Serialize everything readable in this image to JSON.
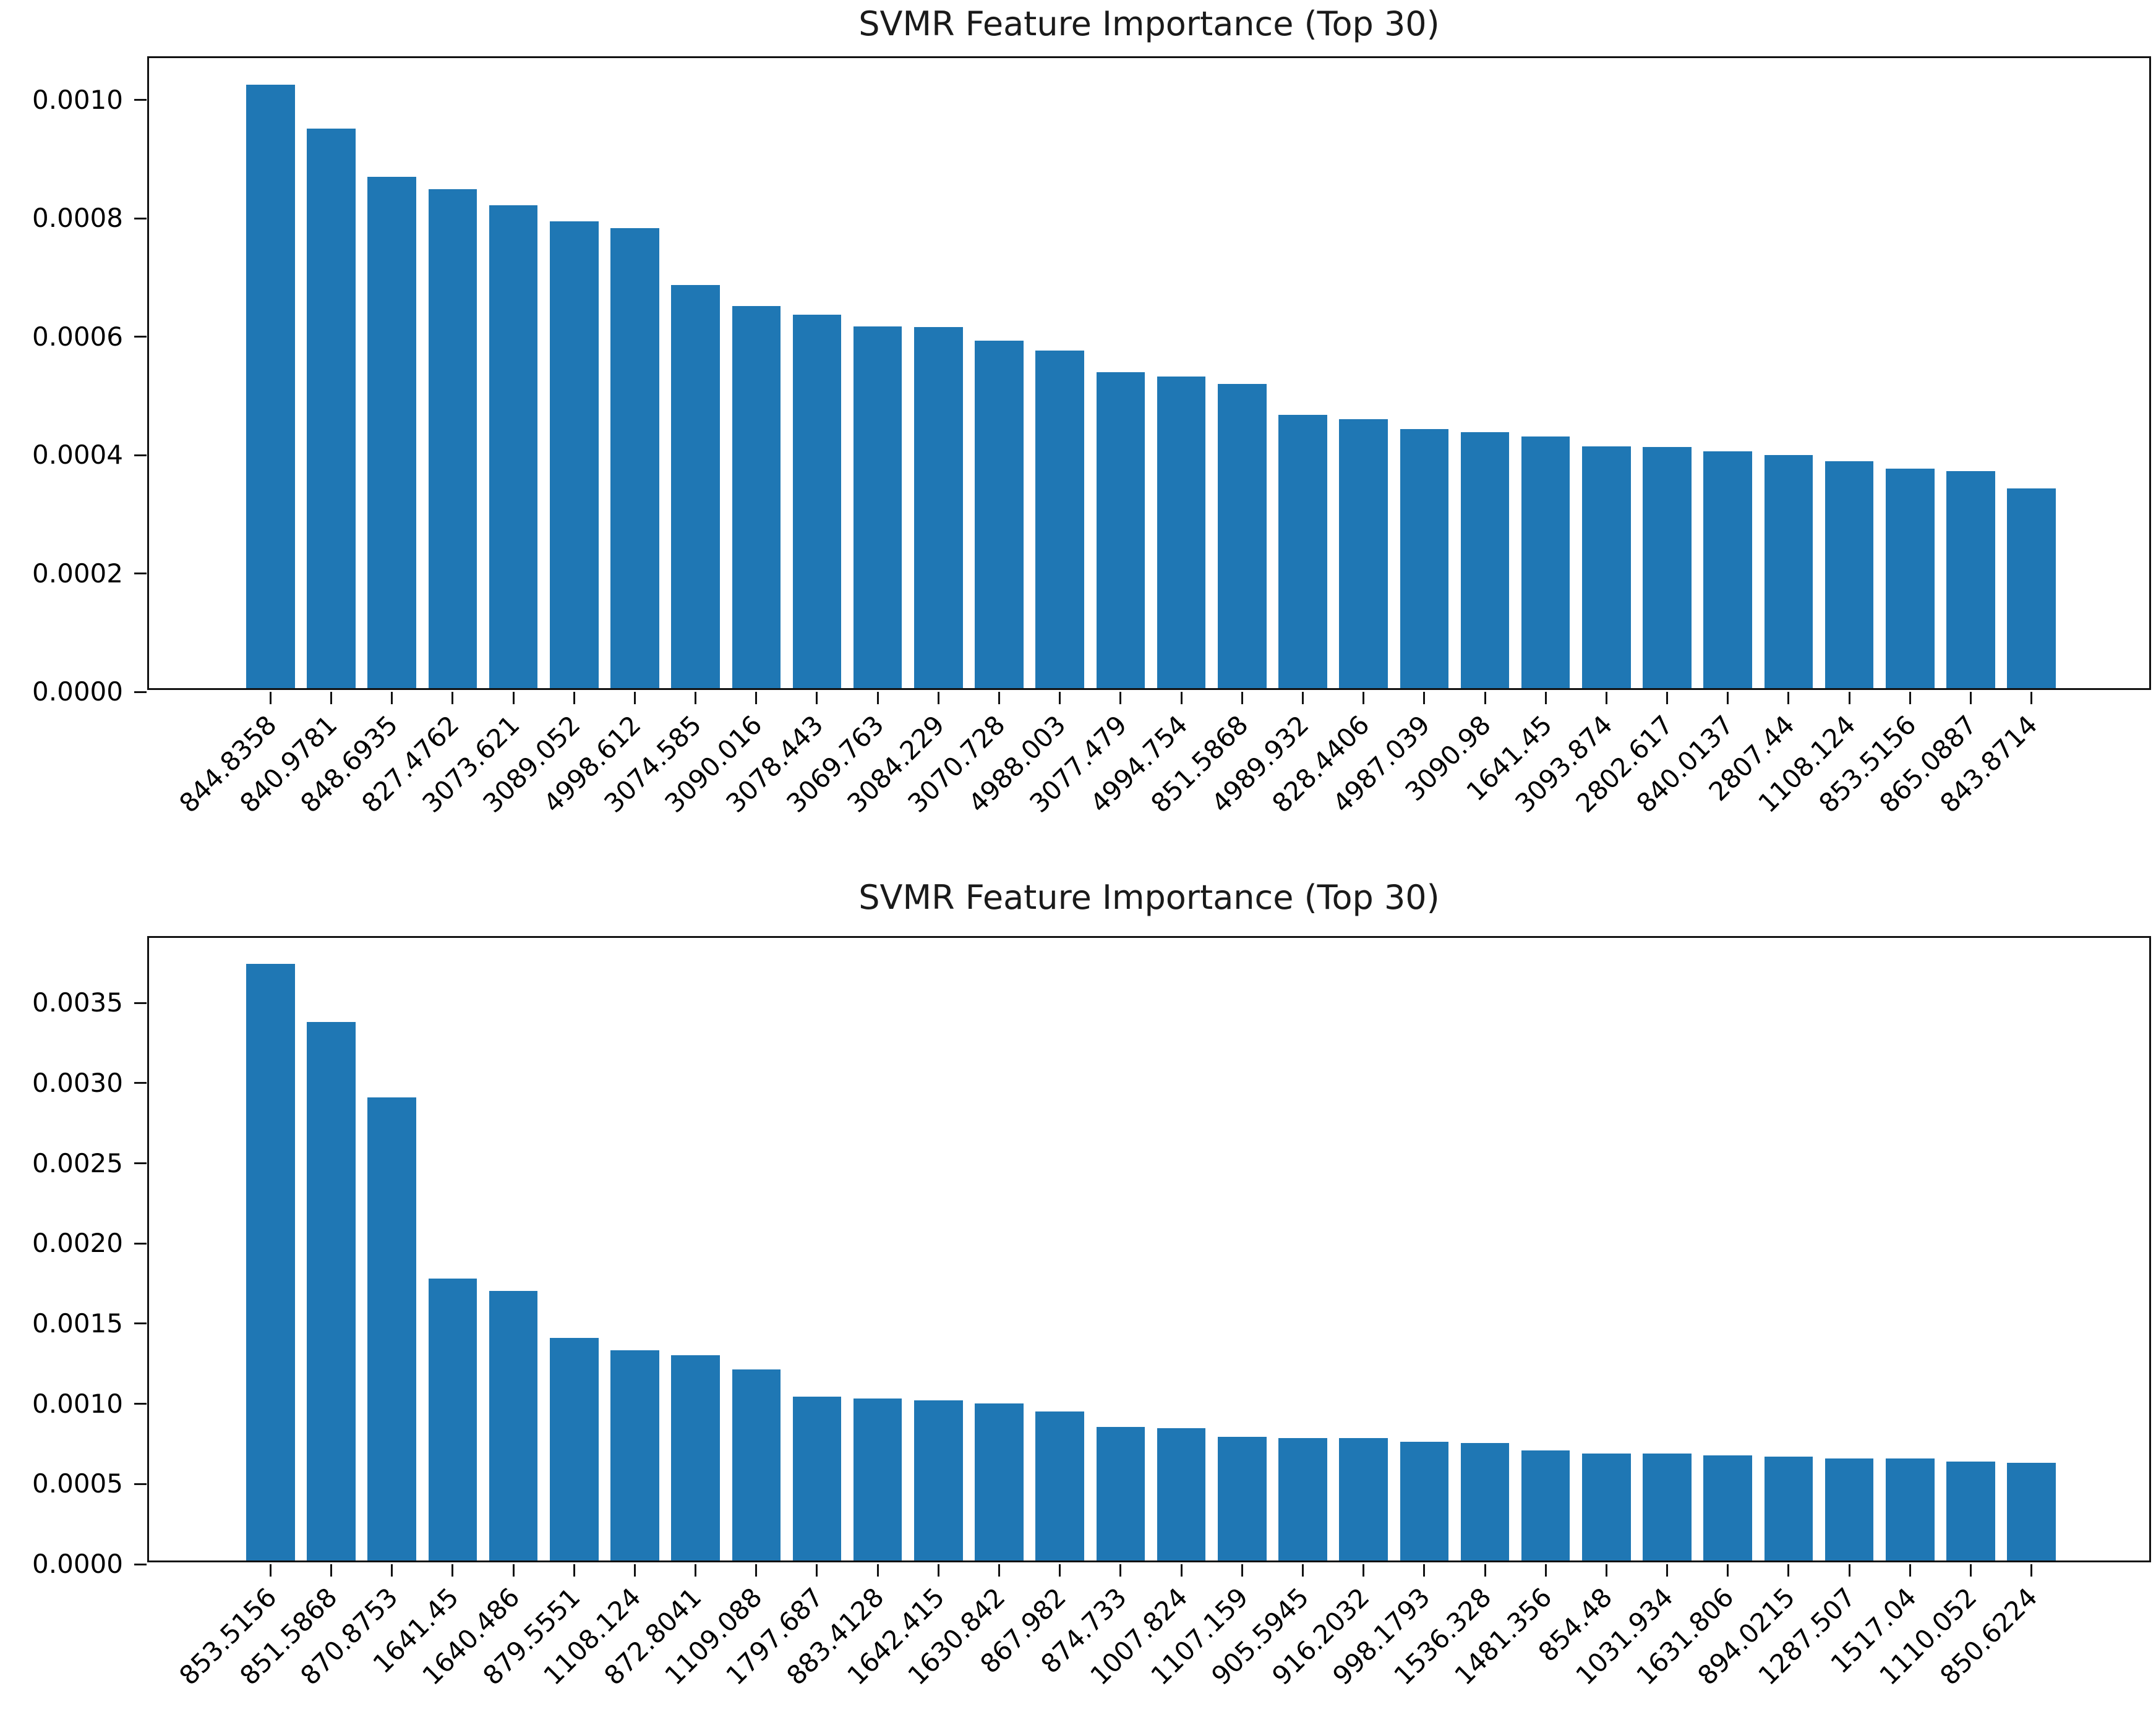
{
  "figure": {
    "background_color": "#ffffff",
    "bar_color": "#1f77b4",
    "axis_color": "#111111"
  },
  "chart_data": [
    {
      "type": "bar",
      "title": "SVMR Feature Importance (Top 30)",
      "xlabel": "",
      "ylabel": "",
      "grid": false,
      "legend": "none",
      "bar_color": "#1f77b4",
      "ylim": [
        0,
        0.001071
      ],
      "ytick_values": [
        0.0,
        0.0002,
        0.0004,
        0.0006,
        0.0008,
        0.001
      ],
      "ytick_labels": [
        "0.0000",
        "0.0002",
        "0.0004",
        "0.0006",
        "0.0008",
        "0.0010"
      ],
      "categories": [
        "844.8358",
        "840.9781",
        "848.6935",
        "827.4762",
        "3073.621",
        "3089.052",
        "4998.612",
        "3074.585",
        "3090.016",
        "3078.443",
        "3069.763",
        "3084.229",
        "3070.728",
        "4988.003",
        "3077.479",
        "4994.754",
        "851.5868",
        "4989.932",
        "828.4406",
        "4987.039",
        "3090.98",
        "1641.45",
        "3093.874",
        "2802.617",
        "840.0137",
        "2807.44",
        "1108.124",
        "853.5156",
        "865.0887",
        "843.8714"
      ],
      "values": [
        0.00102,
        0.000946,
        0.000864,
        0.000843,
        0.000816,
        0.000789,
        0.000777,
        0.000681,
        0.000646,
        0.000631,
        0.000611,
        0.00061,
        0.000587,
        0.000571,
        0.000534,
        0.000527,
        0.000514,
        0.000462,
        0.000455,
        0.000438,
        0.000433,
        0.000425,
        0.000409,
        0.000408,
        0.0004,
        0.000394,
        0.000384,
        0.000371,
        0.000367,
        0.000338
      ]
    },
    {
      "type": "bar",
      "title": "SVMR Feature Importance (Top 30)",
      "xlabel": "",
      "ylabel": "",
      "grid": false,
      "legend": "none",
      "bar_color": "#1f77b4",
      "ylim": [
        0,
        0.003906
      ],
      "ytick_values": [
        0.0,
        0.0005,
        0.001,
        0.0015,
        0.002,
        0.0025,
        0.003,
        0.0035
      ],
      "ytick_labels": [
        "0.0000",
        "0.0005",
        "0.0010",
        "0.0015",
        "0.0020",
        "0.0025",
        "0.0030",
        "0.0035"
      ],
      "categories": [
        "853.5156",
        "851.5868",
        "870.8753",
        "1641.45",
        "1640.486",
        "879.5551",
        "1108.124",
        "872.8041",
        "1109.088",
        "1797.687",
        "883.4128",
        "1642.415",
        "1630.842",
        "867.982",
        "874.733",
        "1007.824",
        "1107.159",
        "905.5945",
        "916.2032",
        "998.1793",
        "1536.328",
        "1481.356",
        "854.48",
        "1031.934",
        "1631.806",
        "894.0215",
        "1287.507",
        "1517.04",
        "1110.052",
        "850.6224"
      ],
      "values": [
        0.00372,
        0.00336,
        0.00289,
        0.00176,
        0.00168,
        0.00139,
        0.00131,
        0.00128,
        0.00119,
        0.00102,
        0.00101,
        0.001,
        0.00098,
        0.00093,
        0.000833,
        0.000827,
        0.000771,
        0.000762,
        0.000762,
        0.000741,
        0.000732,
        0.000686,
        0.000667,
        0.000667,
        0.000657,
        0.000647,
        0.000637,
        0.000637,
        0.000618,
        0.00061
      ]
    }
  ]
}
